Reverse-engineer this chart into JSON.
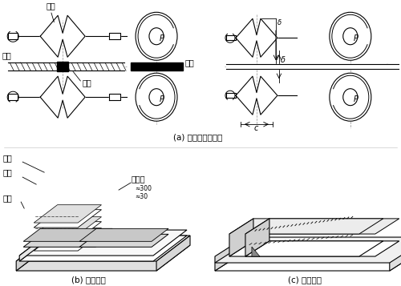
{
  "background": "#ffffff",
  "label_a": "(a) 輾壓及輥輪參數",
  "label_b": "(b) 壓鐵輔助",
  "label_c": "(c) 角鋼輔助",
  "text_gunlun": "輥輪",
  "text_gangban": "鋼板",
  "text_hanjian": "焊縫",
  "text_jiaya": "加壓",
  "text_yatie": "壓鐵",
  "text_hanjian2": "焊件",
  "text_pingtai": "平台",
  "text_dingweihan": "定位焊",
  "text_P": "P",
  "text_c": "c",
  "text_delta": "δ",
  "line_color": "#000000",
  "fig_width": 5.0,
  "fig_height": 3.57
}
